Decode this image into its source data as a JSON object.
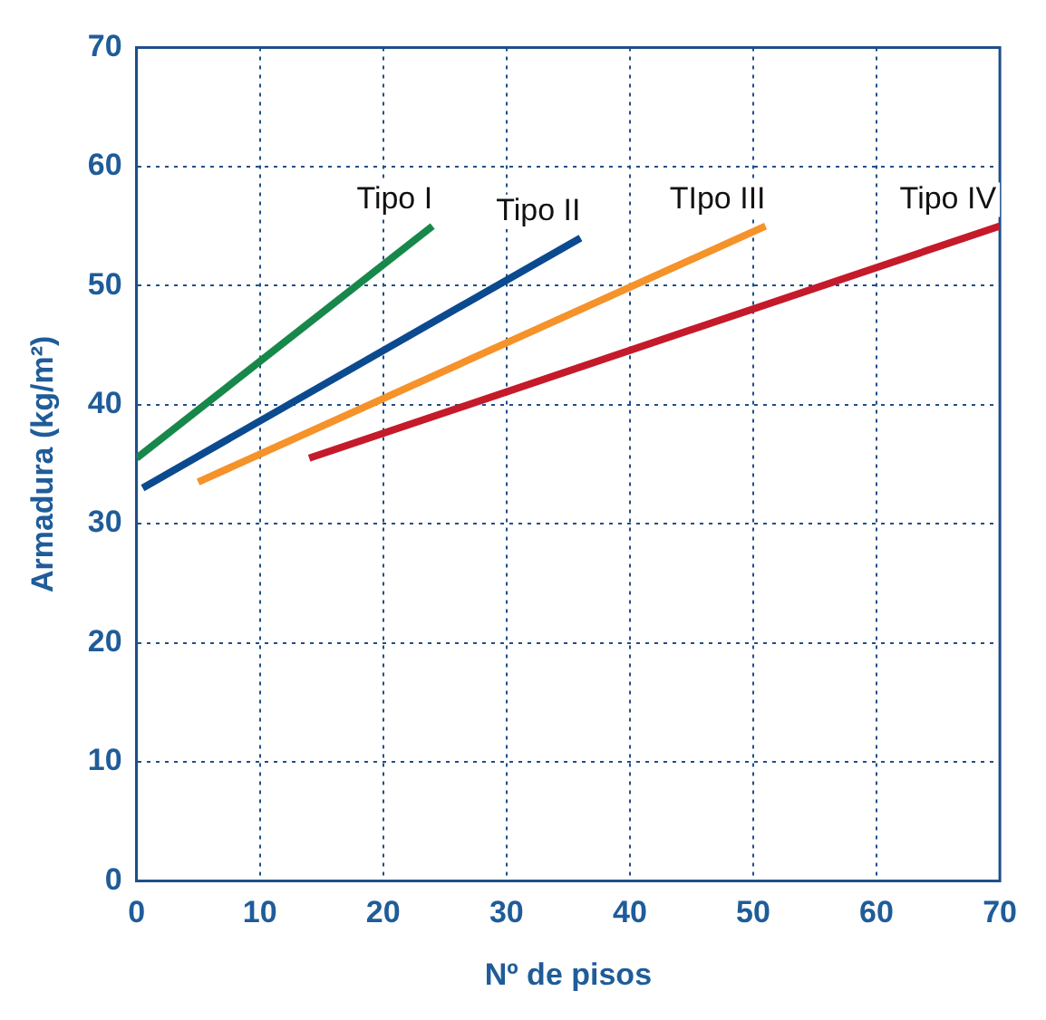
{
  "chart_data": {
    "type": "line",
    "xlabel": "Nº de pisos",
    "ylabel": "Armadura (kg/m²)",
    "xlim": [
      0,
      70
    ],
    "ylim": [
      0,
      70
    ],
    "xticks": [
      0,
      10,
      20,
      30,
      40,
      50,
      60,
      70
    ],
    "yticks": [
      0,
      10,
      20,
      30,
      40,
      50,
      60,
      70
    ],
    "grid": true,
    "legend": false,
    "marker": "none",
    "line_style": "solid",
    "series": [
      {
        "name": "Tipo I",
        "color": "#17884a",
        "x": [
          0,
          24
        ],
        "values": [
          35.5,
          55
        ]
      },
      {
        "name": "Tipo II",
        "color": "#0b4a8f",
        "x": [
          0.5,
          36
        ],
        "values": [
          33,
          54
        ]
      },
      {
        "name": "TIpo III",
        "color": "#f5922a",
        "x": [
          5,
          51
        ],
        "values": [
          33.5,
          55
        ]
      },
      {
        "name": "Tipo IV",
        "color": "#c41a2a",
        "x": [
          14,
          70
        ],
        "values": [
          35.5,
          55
        ]
      }
    ]
  }
}
